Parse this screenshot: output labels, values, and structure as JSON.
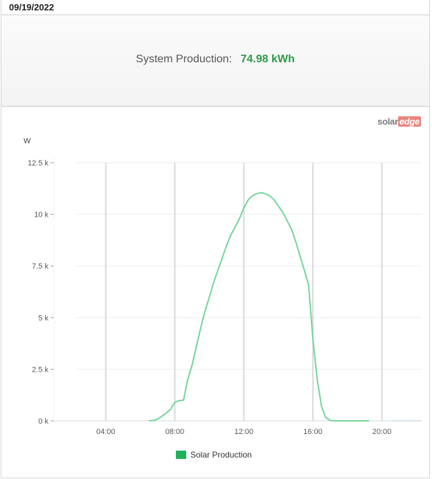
{
  "header": {
    "date": "09/19/2022"
  },
  "summary": {
    "label": "System Production:",
    "value": "74.98 kWh"
  },
  "logo": {
    "part1": "solar",
    "part2": "edge"
  },
  "colors": {
    "series": "#72d49c",
    "legend": "#1fb05a",
    "value": "#2e9b49"
  },
  "chart_data": {
    "type": "line",
    "ylabel": "W",
    "ylim": [
      0,
      12500
    ],
    "xlim": [
      1.0,
      22.3
    ],
    "x_unit": "hour",
    "y_ticks": [
      {
        "value": 0,
        "label": "0 k"
      },
      {
        "value": 2500,
        "label": "2.5 k"
      },
      {
        "value": 5000,
        "label": "5 k"
      },
      {
        "value": 7500,
        "label": "7.5 k"
      },
      {
        "value": 10000,
        "label": "10 k"
      },
      {
        "value": 12500,
        "label": "12.5 k"
      }
    ],
    "x_ticks": [
      {
        "value": 4,
        "label": "04:00"
      },
      {
        "value": 8,
        "label": "08:00"
      },
      {
        "value": 12,
        "label": "12:00"
      },
      {
        "value": 16,
        "label": "16:00"
      },
      {
        "value": 20,
        "label": "20:00"
      }
    ],
    "series": [
      {
        "name": "Solar Production",
        "x": [
          6.5,
          6.75,
          7.0,
          7.25,
          7.5,
          7.75,
          8.0,
          8.25,
          8.5,
          8.75,
          9.0,
          9.25,
          9.5,
          9.75,
          10.0,
          10.25,
          10.5,
          10.75,
          11.0,
          11.25,
          11.5,
          11.75,
          12.0,
          12.25,
          12.5,
          12.75,
          13.0,
          13.25,
          13.5,
          13.75,
          14.0,
          14.25,
          14.5,
          14.75,
          15.0,
          15.25,
          15.5,
          15.75,
          16.0,
          16.25,
          16.5,
          16.75,
          17.0,
          17.25,
          17.5,
          17.75,
          18.0,
          18.25,
          18.5,
          18.75,
          19.0,
          19.25
        ],
        "y": [
          0,
          20,
          80,
          220,
          380,
          550,
          900,
          980,
          1000,
          2000,
          2700,
          3600,
          4500,
          5300,
          6000,
          6700,
          7300,
          7900,
          8500,
          9000,
          9400,
          9800,
          10300,
          10700,
          10900,
          11000,
          11050,
          11000,
          10900,
          10700,
          10400,
          10100,
          9700,
          9300,
          8700,
          8000,
          7300,
          6600,
          4000,
          2000,
          700,
          150,
          20,
          0,
          0,
          0,
          0,
          0,
          0,
          0,
          0,
          0
        ]
      }
    ],
    "legend_position": "bottom-center",
    "grid": true
  }
}
